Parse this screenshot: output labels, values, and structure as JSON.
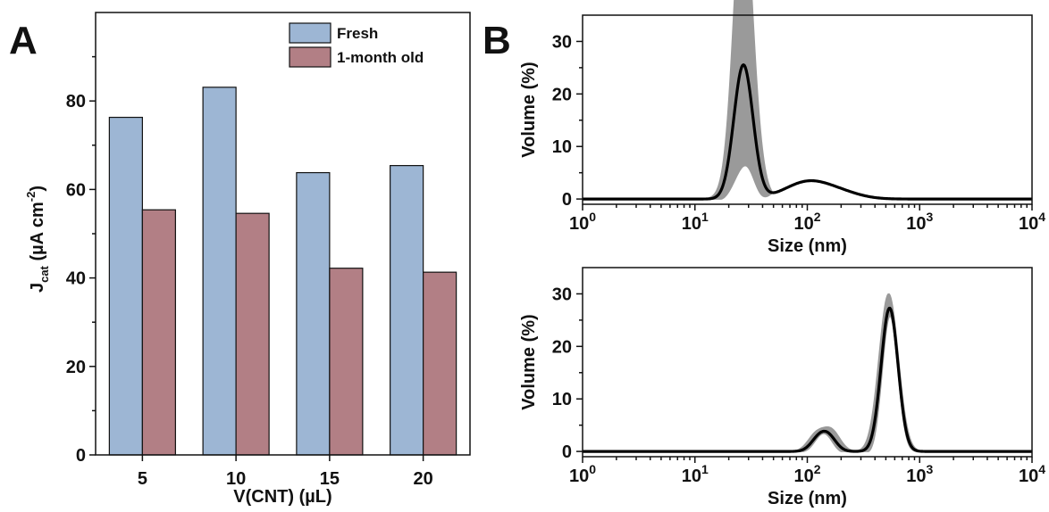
{
  "panels": {
    "A": "A",
    "B": "B"
  },
  "chart_data": [
    {
      "type": "bar",
      "panel": "A",
      "categories": [
        "5",
        "10",
        "15",
        "20"
      ],
      "series": [
        {
          "name": "Fresh",
          "values": [
            76.3,
            83.1,
            63.8,
            65.4
          ],
          "color": "#9db6d4"
        },
        {
          "name": "1-month old",
          "values": [
            55.4,
            54.6,
            42.2,
            41.3
          ],
          "color": "#b27f85"
        }
      ],
      "xlabel": "V(CNT) (µL)",
      "ylabel_main": "J",
      "ylabel_sub": "cat",
      "ylabel_rest": " (µA cm",
      "ylabel_sup": "-2",
      "ylabel_end": ")",
      "ylim": [
        0,
        100
      ],
      "yticks": [
        0,
        20,
        40,
        60,
        80
      ],
      "legend_position": "top-right",
      "grid": false
    },
    {
      "type": "line",
      "panel": "B-top",
      "xscale": "log",
      "xlim": [
        1,
        10000
      ],
      "ylim": [
        -1,
        35
      ],
      "yticks": [
        0,
        10,
        20,
        30
      ],
      "xticks": [
        1,
        10,
        100,
        1000,
        10000
      ],
      "xtick_base": "10",
      "xtick_exponents": [
        "0",
        "1",
        "2",
        "3",
        "4"
      ],
      "xlabel": "Size (nm)",
      "ylabel": "Volume (%)",
      "peaks": [
        {
          "center": 27,
          "height": 25.5,
          "width": 0.085
        },
        {
          "center": 100,
          "height": 3.2,
          "width": 0.2
        },
        {
          "center": 200,
          "height": 1.0,
          "width": 0.18
        }
      ],
      "band_peaks": [
        {
          "center": 26.5,
          "height": 30.0,
          "width": 0.075
        },
        {
          "center": 27.5,
          "height": 28.0,
          "width": 0.1
        }
      ],
      "tail_end": 10000,
      "grid": false
    },
    {
      "type": "line",
      "panel": "B-bottom",
      "xscale": "log",
      "xlim": [
        1,
        10000
      ],
      "ylim": [
        -1,
        35
      ],
      "yticks": [
        0,
        10,
        20,
        30
      ],
      "xticks": [
        1,
        10,
        100,
        1000,
        10000
      ],
      "xtick_base": "10",
      "xtick_exponents": [
        "0",
        "1",
        "2",
        "3",
        "4"
      ],
      "xlabel": "Size (nm)",
      "ylabel": "Volume (%)",
      "peaks": [
        {
          "center": 125,
          "height": 2.2,
          "width": 0.07
        },
        {
          "center": 155,
          "height": 2.6,
          "width": 0.07
        },
        {
          "center": 540,
          "height": 27.3,
          "width": 0.075
        }
      ],
      "band_peaks": [
        {
          "center": 120,
          "height": 3.2,
          "width": 0.075
        },
        {
          "center": 165,
          "height": 3.8,
          "width": 0.075
        },
        {
          "center": 530,
          "height": 30.0,
          "width": 0.085
        }
      ],
      "tail_end": 10000,
      "grid": false
    }
  ]
}
